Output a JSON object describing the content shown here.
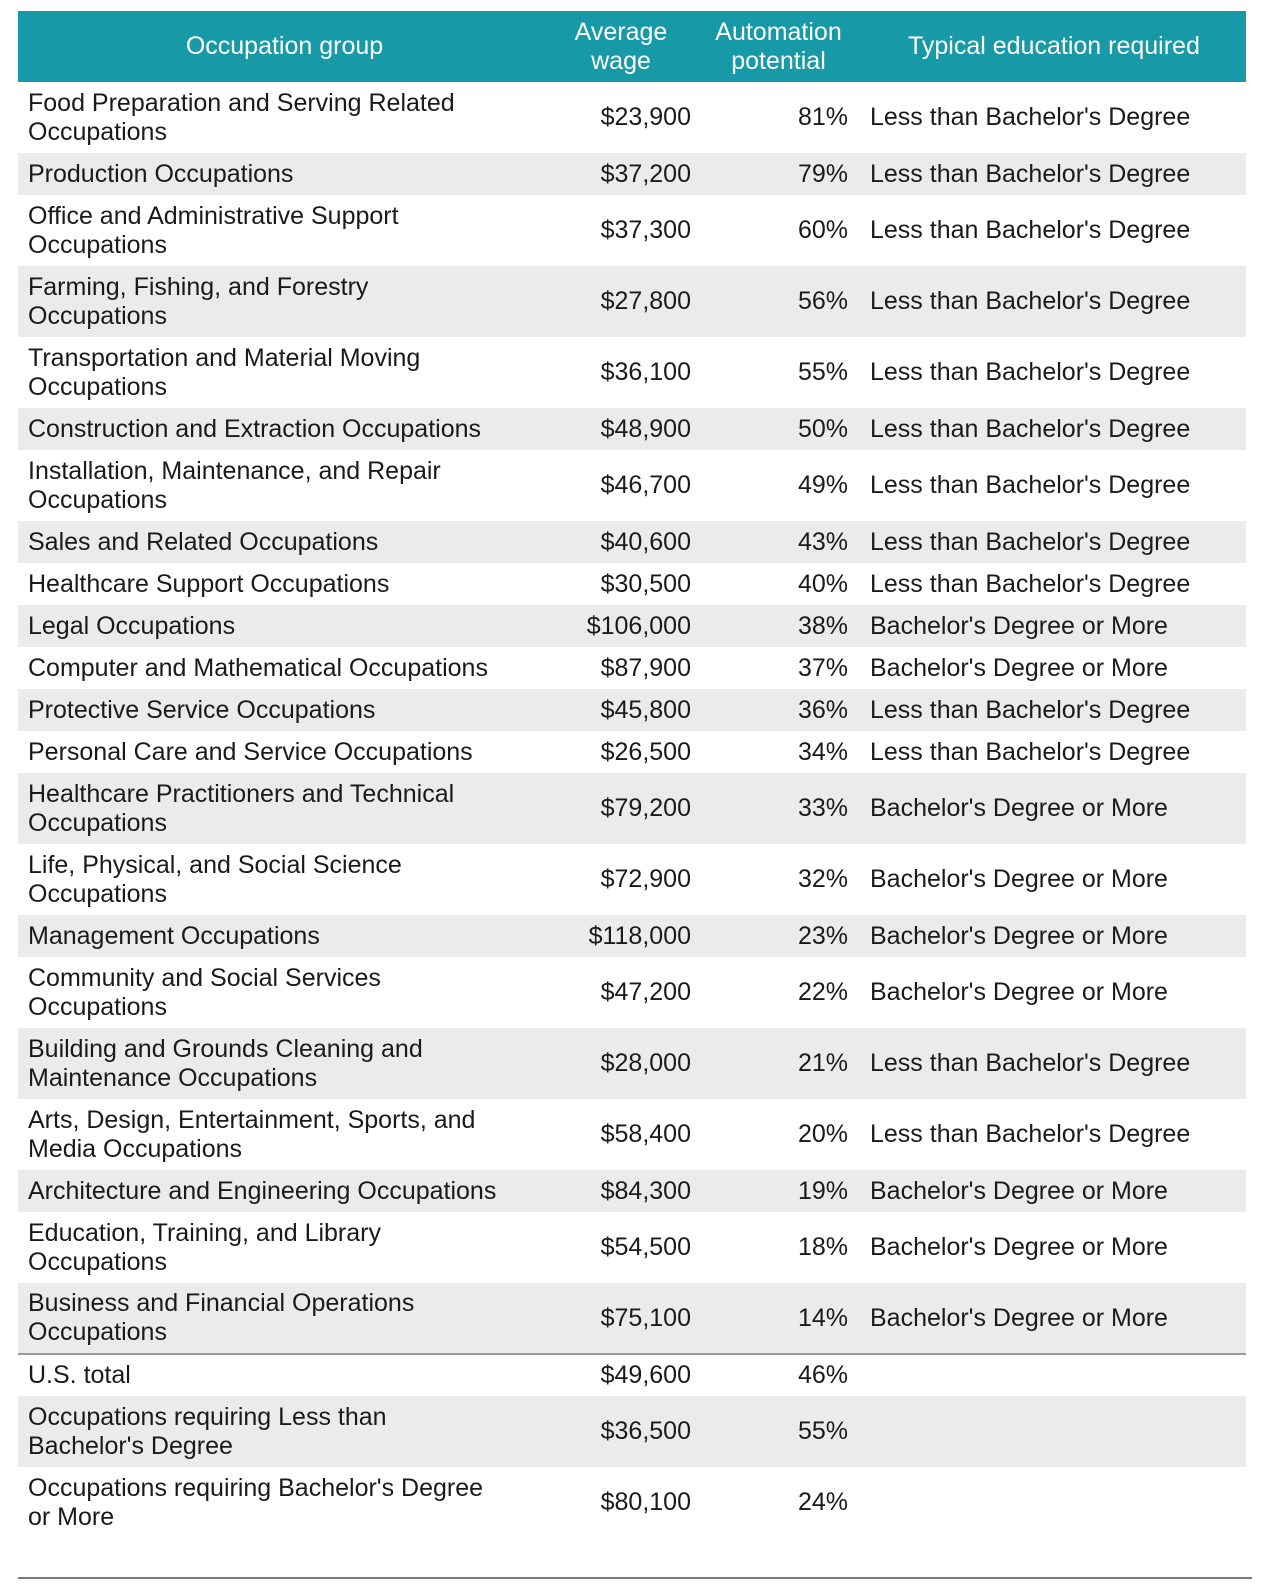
{
  "table": {
    "headers": {
      "occupation": "Occupation group",
      "wage_line1": "Average",
      "wage_line2": "wage",
      "auto_line1": "Automation",
      "auto_line2": "potential",
      "education": "Typical education required"
    },
    "rows": [
      {
        "occ1": "Food Preparation and Serving Related",
        "occ2": "Occupations",
        "wage": "$23,900",
        "auto": "81%",
        "edu": "Less than Bachelor's Degree"
      },
      {
        "occ1": "Production Occupations",
        "occ2": "",
        "wage": "$37,200",
        "auto": "79%",
        "edu": "Less than Bachelor's Degree"
      },
      {
        "occ1": "Office and Administrative Support",
        "occ2": "Occupations",
        "wage": "$37,300",
        "auto": "60%",
        "edu": "Less than Bachelor's Degree"
      },
      {
        "occ1": "Farming, Fishing, and Forestry",
        "occ2": "Occupations",
        "wage": "$27,800",
        "auto": "56%",
        "edu": "Less than Bachelor's Degree"
      },
      {
        "occ1": "Transportation and Material Moving",
        "occ2": "Occupations",
        "wage": "$36,100",
        "auto": "55%",
        "edu": "Less than Bachelor's Degree"
      },
      {
        "occ1": "Construction and Extraction Occupations",
        "occ2": "",
        "wage": "$48,900",
        "auto": "50%",
        "edu": "Less than Bachelor's Degree"
      },
      {
        "occ1": "Installation, Maintenance, and Repair",
        "occ2": "Occupations",
        "wage": "$46,700",
        "auto": "49%",
        "edu": "Less than Bachelor's Degree"
      },
      {
        "occ1": "Sales and Related Occupations",
        "occ2": "",
        "wage": "$40,600",
        "auto": "43%",
        "edu": "Less than Bachelor's Degree"
      },
      {
        "occ1": "Healthcare Support Occupations",
        "occ2": "",
        "wage": "$30,500",
        "auto": "40%",
        "edu": "Less than Bachelor's Degree"
      },
      {
        "occ1": "Legal Occupations",
        "occ2": "",
        "wage": "$106,000",
        "auto": "38%",
        "edu": "Bachelor's Degree or More"
      },
      {
        "occ1": "Computer and Mathematical Occupations",
        "occ2": "",
        "wage": "$87,900",
        "auto": "37%",
        "edu": "Bachelor's Degree or More"
      },
      {
        "occ1": "Protective Service Occupations",
        "occ2": "",
        "wage": "$45,800",
        "auto": "36%",
        "edu": "Less than Bachelor's Degree"
      },
      {
        "occ1": "Personal Care and Service Occupations",
        "occ2": "",
        "wage": "$26,500",
        "auto": "34%",
        "edu": "Less than Bachelor's Degree"
      },
      {
        "occ1": "Healthcare Practitioners and Technical",
        "occ2": "Occupations",
        "wage": "$79,200",
        "auto": "33%",
        "edu": "Bachelor's Degree or More"
      },
      {
        "occ1": "Life, Physical, and Social Science",
        "occ2": "Occupations",
        "wage": "$72,900",
        "auto": "32%",
        "edu": "Bachelor's Degree or More"
      },
      {
        "occ1": "Management Occupations",
        "occ2": "",
        "wage": "$118,000",
        "auto": "23%",
        "edu": "Bachelor's Degree or More"
      },
      {
        "occ1": "Community and Social Services",
        "occ2": "Occupations",
        "wage": "$47,200",
        "auto": "22%",
        "edu": "Bachelor's Degree or More"
      },
      {
        "occ1": "Building and Grounds Cleaning and",
        "occ2": "Maintenance Occupations",
        "wage": "$28,000",
        "auto": "21%",
        "edu": "Less than Bachelor's Degree"
      },
      {
        "occ1": "Arts, Design, Entertainment, Sports, and",
        "occ2": "Media Occupations",
        "wage": "$58,400",
        "auto": "20%",
        "edu": "Less than Bachelor's Degree"
      },
      {
        "occ1": "Architecture and Engineering Occupations",
        "occ2": "",
        "wage": "$84,300",
        "auto": "19%",
        "edu": "Bachelor's Degree or More"
      },
      {
        "occ1": "Education, Training, and Library",
        "occ2": "Occupations",
        "wage": "$54,500",
        "auto": "18%",
        "edu": "Bachelor's Degree or More"
      },
      {
        "occ1": "Business and Financial Operations",
        "occ2": "Occupations",
        "wage": "$75,100",
        "auto": "14%",
        "edu": "Bachelor's Degree or More"
      }
    ],
    "totals": [
      {
        "occ1": "U.S. total",
        "occ2": "",
        "wage": "$49,600",
        "auto": "46%",
        "edu": ""
      },
      {
        "occ1": "Occupations requiring Less than",
        "occ2": "Bachelor's Degree",
        "wage": "$36,500",
        "auto": "55%",
        "edu": ""
      },
      {
        "occ1": "Occupations requiring Bachelor's Degree",
        "occ2": "or More",
        "wage": "$80,100",
        "auto": "24%",
        "edu": ""
      }
    ],
    "header_color": "#1799a7",
    "stripe_color": "#ebebeb"
  }
}
